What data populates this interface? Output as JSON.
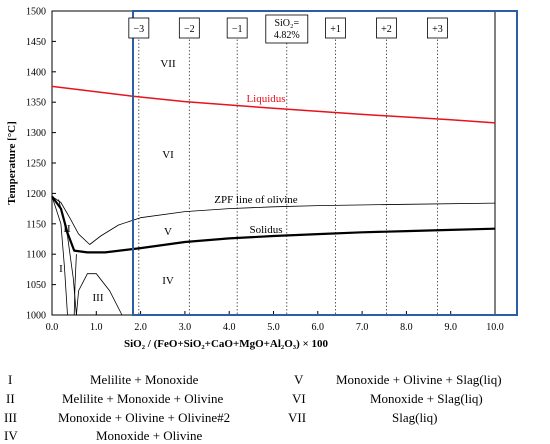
{
  "chart_data": {
    "type": "line",
    "xlabel": "SiO₂ / (FeO+SiO₂+CaO+MgO+Al₂O₃) × 100",
    "ylabel": "Temperature [°C]",
    "xlim": [
      0.0,
      10.0
    ],
    "ylim": [
      1000,
      1500
    ],
    "x_ticks": [
      "0.0",
      "1.0",
      "2.0",
      "3.0",
      "4.0",
      "5.0",
      "6.0",
      "7.0",
      "8.0",
      "9.0",
      "10.0"
    ],
    "y_ticks": [
      "1000",
      "1050",
      "1100",
      "1150",
      "1200",
      "1250",
      "1300",
      "1350",
      "1400",
      "1450",
      "1500"
    ],
    "series": [
      {
        "name": "Liquidus",
        "color": "#e8121e",
        "x": [
          0.0,
          1.8,
          3.0,
          5.0,
          7.0,
          9.0,
          10.0
        ],
        "y": [
          1376,
          1360,
          1351,
          1340,
          1330,
          1321,
          1316
        ]
      },
      {
        "name": "ZPF line of olivine",
        "color": "#000000",
        "x": [
          0.0,
          0.2,
          0.4,
          0.6,
          0.85,
          1.1,
          1.5,
          2.0,
          3.0,
          4.0,
          5.0,
          6.0,
          8.0,
          10.0
        ],
        "y": [
          1195,
          1185,
          1160,
          1133,
          1116,
          1130,
          1148,
          1160,
          1170,
          1175,
          1178,
          1180,
          1182,
          1184
        ]
      },
      {
        "name": "Solidus",
        "color": "#000000",
        "x": [
          0.0,
          0.2,
          0.35,
          0.5,
          0.8,
          1.2,
          2.0,
          3.0,
          4.0,
          5.0,
          6.0,
          7.0,
          8.0,
          9.0,
          10.0
        ],
        "y": [
          1195,
          1175,
          1135,
          1106,
          1103,
          1103,
          1110,
          1120,
          1126,
          1130,
          1133,
          1136,
          1138,
          1140,
          1142
        ]
      }
    ],
    "deviation_labels": [
      "−3",
      "−2",
      "−1",
      "SiO₂=",
      "4.82%",
      "+1",
      "+2",
      "+3"
    ],
    "region_labels": [
      "VII",
      "VI",
      "V",
      "IV",
      "III",
      "II",
      "I"
    ],
    "grid": false,
    "legend": "inline labels"
  },
  "legend_rows": [
    {
      "id": "I",
      "desc": "Melilite + Monoxide"
    },
    {
      "id": "II",
      "desc": "Melilite + Monoxide + Olivine"
    },
    {
      "id": "III",
      "desc": "Monoxide + Olivine + Olivine#2"
    },
    {
      "id": "IV",
      "desc": "Monoxide + Olivine"
    },
    {
      "id": "V",
      "desc": "Monoxide + Olivine + Slag(liq)"
    },
    {
      "id": "VI",
      "desc": "Monoxide + Slag(liq)"
    },
    {
      "id": "VII",
      "desc": "Slag(liq)"
    }
  ]
}
